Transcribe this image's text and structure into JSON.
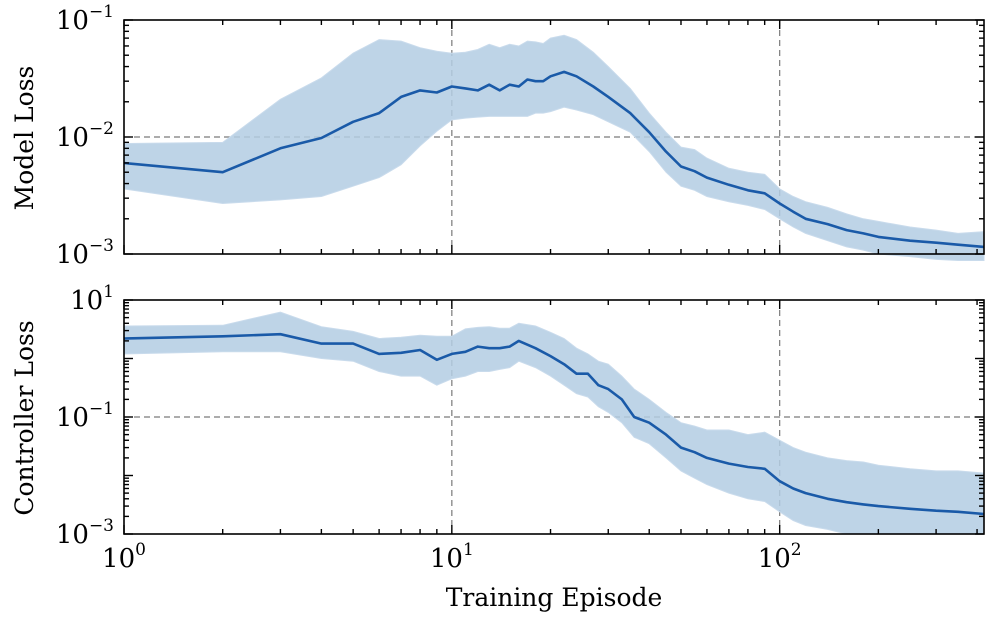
{
  "chart_data": [
    {
      "type": "line",
      "id": "model-loss",
      "ylabel": "Model Loss",
      "xscale": "log",
      "yscale": "log",
      "xlim": [
        1,
        420
      ],
      "ylim": [
        0.001,
        0.1
      ],
      "grid": "dashed major",
      "xticks": [
        1,
        10,
        100
      ],
      "yticks": [
        {
          "value": 0.001,
          "base": "10",
          "exp": "−3"
        },
        {
          "value": 0.01,
          "base": "10",
          "exp": "−2"
        },
        {
          "value": 0.1,
          "base": "10",
          "exp": "−1"
        }
      ],
      "series": [
        {
          "name": "mean",
          "color": "#1a5aa8",
          "band_color": "#b3cde3",
          "x": [
            1,
            2,
            3,
            4,
            5,
            6,
            7,
            8,
            9,
            10,
            11,
            12,
            13,
            14,
            15,
            16,
            17,
            18,
            19,
            20,
            22,
            24,
            27,
            30,
            35,
            40,
            45,
            50,
            55,
            60,
            70,
            80,
            90,
            100,
            110,
            120,
            140,
            160,
            180,
            200,
            250,
            300,
            350,
            420
          ],
          "y": [
            0.006,
            0.005,
            0.008,
            0.0098,
            0.0135,
            0.016,
            0.022,
            0.025,
            0.024,
            0.027,
            0.026,
            0.025,
            0.028,
            0.025,
            0.028,
            0.027,
            0.031,
            0.03,
            0.03,
            0.033,
            0.036,
            0.033,
            0.027,
            0.022,
            0.016,
            0.011,
            0.0075,
            0.0056,
            0.0051,
            0.0045,
            0.0039,
            0.0035,
            0.0033,
            0.0027,
            0.0023,
            0.002,
            0.0018,
            0.0016,
            0.0015,
            0.0014,
            0.0013,
            0.00125,
            0.0012,
            0.00115
          ],
          "lower": [
            0.0036,
            0.0027,
            0.0029,
            0.0031,
            0.0038,
            0.0045,
            0.0058,
            0.0084,
            0.0112,
            0.014,
            0.0145,
            0.0148,
            0.015,
            0.015,
            0.015,
            0.015,
            0.015,
            0.016,
            0.016,
            0.0165,
            0.018,
            0.017,
            0.0155,
            0.0135,
            0.011,
            0.0075,
            0.005,
            0.0038,
            0.0035,
            0.0031,
            0.0028,
            0.0026,
            0.0024,
            0.002,
            0.0017,
            0.0015,
            0.0013,
            0.00115,
            0.00108,
            0.001,
            0.00095,
            0.0009,
            0.00088,
            0.00088
          ],
          "upper": [
            0.0088,
            0.009,
            0.021,
            0.032,
            0.052,
            0.068,
            0.066,
            0.058,
            0.054,
            0.052,
            0.053,
            0.056,
            0.062,
            0.058,
            0.062,
            0.06,
            0.066,
            0.065,
            0.063,
            0.07,
            0.074,
            0.068,
            0.053,
            0.04,
            0.026,
            0.016,
            0.011,
            0.0082,
            0.0078,
            0.0066,
            0.0054,
            0.005,
            0.0048,
            0.0036,
            0.0031,
            0.0028,
            0.0025,
            0.0022,
            0.002,
            0.0019,
            0.0017,
            0.0016,
            0.0015,
            0.00155
          ]
        }
      ]
    },
    {
      "type": "line",
      "id": "controller-loss",
      "ylabel": "Controller Loss",
      "xlabel": "Training Episode",
      "xscale": "log",
      "yscale": "log",
      "xlim": [
        1,
        420
      ],
      "ylim": [
        0.001,
        10
      ],
      "grid": "dashed major",
      "xticks": [
        {
          "value": 1,
          "base": "10",
          "exp": "0"
        },
        {
          "value": 10,
          "base": "10",
          "exp": "1"
        },
        {
          "value": 100,
          "base": "10",
          "exp": "2"
        }
      ],
      "yticks": [
        {
          "value": 0.001,
          "base": "10",
          "exp": "−3"
        },
        {
          "value": 0.1,
          "base": "10",
          "exp": "−1"
        },
        {
          "value": 10,
          "base": "10",
          "exp": "1"
        }
      ],
      "series": [
        {
          "name": "mean",
          "color": "#1a5aa8",
          "band_color": "#b3cde3",
          "x": [
            1,
            2,
            3,
            4,
            5,
            6,
            7,
            8,
            9,
            10,
            11,
            12,
            13,
            14,
            15,
            16,
            18,
            20,
            22,
            24,
            26,
            28,
            30,
            33,
            36,
            40,
            45,
            50,
            55,
            60,
            70,
            80,
            90,
            100,
            110,
            120,
            140,
            160,
            180,
            200,
            250,
            300,
            350,
            420
          ],
          "y": [
            2.2,
            2.4,
            2.6,
            1.8,
            1.8,
            1.2,
            1.25,
            1.4,
            0.95,
            1.2,
            1.3,
            1.6,
            1.5,
            1.5,
            1.6,
            2.0,
            1.5,
            1.1,
            0.8,
            0.55,
            0.55,
            0.35,
            0.3,
            0.2,
            0.1,
            0.08,
            0.05,
            0.03,
            0.025,
            0.02,
            0.016,
            0.014,
            0.013,
            0.008,
            0.006,
            0.005,
            0.004,
            0.0035,
            0.0032,
            0.003,
            0.0027,
            0.0025,
            0.0024,
            0.0022
          ],
          "lower": [
            1.2,
            1.3,
            1.3,
            1.0,
            0.9,
            0.6,
            0.5,
            0.5,
            0.35,
            0.45,
            0.5,
            0.6,
            0.6,
            0.65,
            0.7,
            0.9,
            0.7,
            0.5,
            0.35,
            0.25,
            0.22,
            0.15,
            0.12,
            0.08,
            0.045,
            0.035,
            0.02,
            0.012,
            0.009,
            0.007,
            0.005,
            0.004,
            0.0036,
            0.0024,
            0.0017,
            0.0014,
            0.0012,
            0.001,
            0.001,
            0.001,
            0.001,
            0.001,
            0.001,
            0.001
          ],
          "upper": [
            3.6,
            3.7,
            6.2,
            3.5,
            2.9,
            2.2,
            2.3,
            2.5,
            2.4,
            2.4,
            3.2,
            3.4,
            3.5,
            3.3,
            3.3,
            4.0,
            3.6,
            2.8,
            2.2,
            1.5,
            1.2,
            0.9,
            0.8,
            0.5,
            0.3,
            0.2,
            0.12,
            0.08,
            0.07,
            0.06,
            0.06,
            0.05,
            0.055,
            0.04,
            0.03,
            0.025,
            0.02,
            0.018,
            0.017,
            0.015,
            0.013,
            0.012,
            0.012,
            0.011
          ]
        }
      ]
    }
  ]
}
